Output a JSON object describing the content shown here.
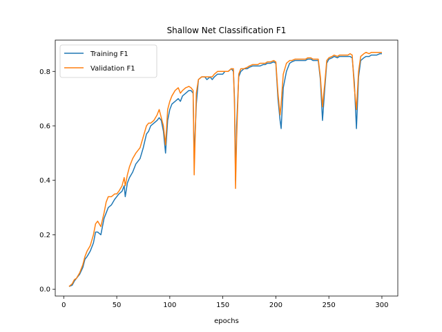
{
  "chart_data": {
    "type": "line",
    "title": "Shallow Net Classification F1",
    "xlabel": "epochs",
    "ylabel": "",
    "xlim": [
      -8,
      315
    ],
    "ylim": [
      -0.025,
      0.915
    ],
    "xticks": [
      0,
      50,
      100,
      150,
      200,
      250,
      300
    ],
    "yticks": [
      0.0,
      0.2,
      0.4,
      0.6,
      0.8
    ],
    "xtick_labels": [
      "0",
      "50",
      "100",
      "150",
      "200",
      "250",
      "300"
    ],
    "ytick_labels": [
      "0.0",
      "0.2",
      "0.4",
      "0.6",
      "0.8"
    ],
    "grid": false,
    "legend": {
      "position": "top-left"
    },
    "series": [
      {
        "name": "Training F1",
        "color": "#1f77b4",
        "x": [
          5,
          8,
          10,
          12,
          15,
          18,
          20,
          22,
          25,
          28,
          30,
          32,
          35,
          38,
          40,
          42,
          45,
          48,
          50,
          52,
          55,
          57,
          58,
          60,
          62,
          65,
          68,
          70,
          72,
          75,
          78,
          80,
          82,
          85,
          88,
          90,
          92,
          94,
          96,
          98,
          100,
          102,
          105,
          108,
          110,
          112,
          115,
          118,
          120,
          122,
          123,
          125,
          127,
          130,
          133,
          135,
          138,
          140,
          142,
          145,
          148,
          150,
          152,
          155,
          158,
          160,
          161,
          162,
          163,
          165,
          167,
          170,
          173,
          175,
          178,
          180,
          183,
          185,
          188,
          190,
          192,
          195,
          198,
          200,
          202,
          204,
          205,
          207,
          210,
          213,
          215,
          218,
          220,
          223,
          225,
          228,
          230,
          233,
          235,
          238,
          240,
          242,
          244,
          246,
          248,
          250,
          253,
          255,
          258,
          260,
          263,
          265,
          268,
          270,
          272,
          274,
          276,
          278,
          280,
          283,
          285,
          288,
          290,
          293,
          295,
          298,
          300
        ],
        "y": [
          0.01,
          0.015,
          0.03,
          0.04,
          0.055,
          0.08,
          0.11,
          0.12,
          0.14,
          0.17,
          0.21,
          0.21,
          0.2,
          0.26,
          0.28,
          0.3,
          0.31,
          0.33,
          0.34,
          0.35,
          0.36,
          0.38,
          0.34,
          0.39,
          0.41,
          0.43,
          0.46,
          0.47,
          0.48,
          0.52,
          0.57,
          0.58,
          0.6,
          0.61,
          0.62,
          0.63,
          0.62,
          0.58,
          0.5,
          0.62,
          0.66,
          0.68,
          0.69,
          0.7,
          0.69,
          0.71,
          0.72,
          0.73,
          0.73,
          0.72,
          0.48,
          0.68,
          0.77,
          0.78,
          0.78,
          0.77,
          0.78,
          0.77,
          0.78,
          0.79,
          0.79,
          0.79,
          0.8,
          0.8,
          0.81,
          0.8,
          0.7,
          0.4,
          0.6,
          0.78,
          0.8,
          0.81,
          0.81,
          0.815,
          0.82,
          0.82,
          0.82,
          0.82,
          0.825,
          0.825,
          0.83,
          0.83,
          0.835,
          0.83,
          0.7,
          0.62,
          0.59,
          0.74,
          0.8,
          0.83,
          0.835,
          0.84,
          0.84,
          0.84,
          0.84,
          0.84,
          0.845,
          0.845,
          0.84,
          0.84,
          0.84,
          0.77,
          0.62,
          0.73,
          0.83,
          0.845,
          0.85,
          0.855,
          0.85,
          0.855,
          0.855,
          0.855,
          0.855,
          0.855,
          0.85,
          0.76,
          0.59,
          0.78,
          0.84,
          0.85,
          0.855,
          0.855,
          0.86,
          0.86,
          0.86,
          0.865,
          0.865
        ]
      },
      {
        "name": "Validation F1",
        "color": "#ff7f0e",
        "x": [
          5,
          8,
          10,
          12,
          15,
          18,
          20,
          22,
          25,
          28,
          30,
          32,
          35,
          38,
          40,
          42,
          45,
          48,
          50,
          52,
          55,
          57,
          58,
          60,
          62,
          65,
          68,
          70,
          72,
          75,
          78,
          80,
          82,
          85,
          88,
          90,
          92,
          94,
          96,
          98,
          100,
          102,
          105,
          108,
          110,
          112,
          115,
          118,
          120,
          122,
          123,
          125,
          127,
          130,
          133,
          135,
          138,
          140,
          142,
          145,
          148,
          150,
          152,
          155,
          158,
          160,
          161,
          162,
          163,
          165,
          167,
          170,
          173,
          175,
          178,
          180,
          183,
          185,
          188,
          190,
          192,
          195,
          198,
          200,
          202,
          204,
          205,
          207,
          210,
          213,
          215,
          218,
          220,
          223,
          225,
          228,
          230,
          233,
          235,
          238,
          240,
          242,
          244,
          246,
          248,
          250,
          253,
          255,
          258,
          260,
          263,
          265,
          268,
          270,
          272,
          274,
          276,
          278,
          280,
          283,
          285,
          288,
          290,
          293,
          295,
          298,
          300
        ],
        "y": [
          0.01,
          0.02,
          0.035,
          0.04,
          0.06,
          0.09,
          0.12,
          0.14,
          0.16,
          0.2,
          0.24,
          0.25,
          0.23,
          0.28,
          0.32,
          0.34,
          0.34,
          0.35,
          0.35,
          0.36,
          0.38,
          0.41,
          0.38,
          0.42,
          0.45,
          0.48,
          0.5,
          0.51,
          0.52,
          0.56,
          0.6,
          0.61,
          0.61,
          0.62,
          0.64,
          0.66,
          0.63,
          0.6,
          0.53,
          0.66,
          0.69,
          0.71,
          0.73,
          0.74,
          0.72,
          0.73,
          0.74,
          0.745,
          0.74,
          0.73,
          0.42,
          0.72,
          0.77,
          0.78,
          0.78,
          0.78,
          0.78,
          0.78,
          0.79,
          0.8,
          0.8,
          0.8,
          0.8,
          0.8,
          0.81,
          0.81,
          0.68,
          0.37,
          0.55,
          0.79,
          0.81,
          0.81,
          0.815,
          0.82,
          0.825,
          0.825,
          0.825,
          0.83,
          0.83,
          0.83,
          0.835,
          0.835,
          0.84,
          0.835,
          0.72,
          0.64,
          0.68,
          0.79,
          0.83,
          0.84,
          0.84,
          0.845,
          0.845,
          0.845,
          0.845,
          0.845,
          0.85,
          0.85,
          0.845,
          0.845,
          0.845,
          0.78,
          0.67,
          0.75,
          0.84,
          0.85,
          0.855,
          0.86,
          0.855,
          0.86,
          0.86,
          0.86,
          0.86,
          0.865,
          0.86,
          0.74,
          0.66,
          0.8,
          0.855,
          0.865,
          0.87,
          0.865,
          0.87,
          0.87,
          0.87,
          0.87,
          0.87
        ]
      }
    ]
  }
}
